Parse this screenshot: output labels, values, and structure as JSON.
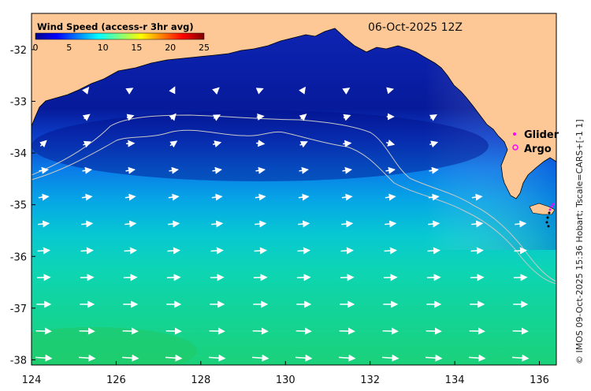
{
  "map": {
    "datetime": "06-Oct-2025 12Z",
    "credit": "© IMOS 09-Oct-2025 15:36 Hobart; Tscale=CARS+[-1 1]",
    "x_ticks": [
      "124",
      "126",
      "128",
      "130",
      "132",
      "134",
      "136"
    ],
    "y_ticks": [
      "-32",
      "-33",
      "-34",
      "-35",
      "-36",
      "-37",
      "-38"
    ],
    "lon_range": [
      124,
      136.4
    ],
    "lat_range": [
      -38.1,
      -31.3
    ],
    "land_color": "#fdc896",
    "colorbar": {
      "title": "Wind Speed (access-r 3hr avg)",
      "ticks": [
        "0",
        "5",
        "10",
        "15",
        "20",
        "25"
      ],
      "range": [
        0,
        25
      ],
      "colors": [
        "#00008f",
        "#0000ff",
        "#007fff",
        "#00ffff",
        "#7fff7f",
        "#ffff00",
        "#ff7f00",
        "#ff0000",
        "#7f0000"
      ]
    },
    "legend": {
      "items": [
        {
          "label": "Glider",
          "symbol": "dot",
          "color": "#ff00ff"
        },
        {
          "label": "Argo",
          "symbol": "circle",
          "color": "#ff00ff"
        }
      ]
    },
    "wind_arrows_color": "#ffffff",
    "contour_color": "#c8c8c8"
  }
}
